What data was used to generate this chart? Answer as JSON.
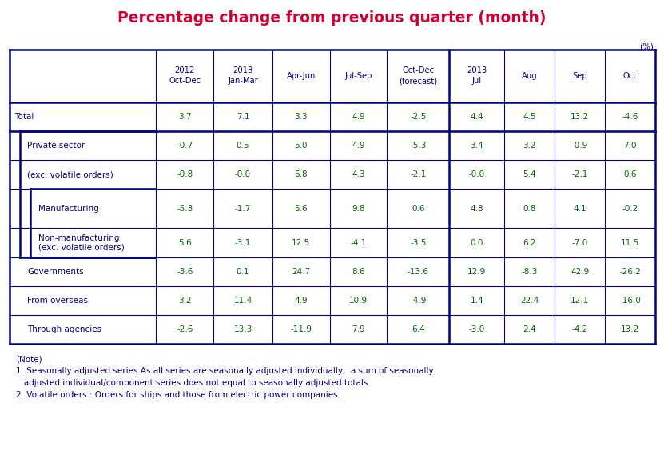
{
  "title": "Percentage change from previous quarter (month)",
  "title_color": "#cc0033",
  "unit_label": "(%)",
  "header_labels": [
    "2012\nOct-Dec",
    "2013\nJan-Mar",
    "Apr-Jun",
    "Jul-Sep",
    "Oct-Dec\n(forecast)",
    "2013\nJul",
    "Aug",
    "Sep",
    "Oct"
  ],
  "row_labels": [
    "Total",
    "Private sector",
    "(exc. volatile orders)",
    "Manufacturing",
    "Non-manufacturing\n(exc. volatile orders)",
    "Governments",
    "From overseas",
    "Through agencies"
  ],
  "indent_levels": [
    0,
    1,
    1,
    2,
    2,
    1,
    1,
    1
  ],
  "data_display": [
    [
      "3.7",
      "7.1",
      "3.3",
      "4.9",
      "-2.5",
      "4.4",
      "4.5",
      "13.2",
      "-4.6"
    ],
    [
      "-0.7",
      "0.5",
      "5.0",
      "4.9",
      "-5.3",
      "3.4",
      "3.2",
      "-0.9",
      "7.0"
    ],
    [
      "-0.8",
      "-0.0",
      "6.8",
      "4.3",
      "-2.1",
      "-0.0",
      "5.4",
      "-2.1",
      "0.6"
    ],
    [
      "-5.3",
      "-1.7",
      "5.6",
      "9.8",
      "0.6",
      "4.8",
      "0.8",
      "4.1",
      "-0.2"
    ],
    [
      "5.6",
      "-3.1",
      "12.5",
      "-4.1",
      "-3.5",
      "0.0",
      "6.2",
      "-7.0",
      "11.5"
    ],
    [
      "-3.6",
      "0.1",
      "24.7",
      "8.6",
      "-13.6",
      "12.9",
      "-8.3",
      "42.9",
      "-26.2"
    ],
    [
      "3.2",
      "11.4",
      "4.9",
      "10.9",
      "-4.9",
      "1.4",
      "22.4",
      "12.1",
      "-16.0"
    ],
    [
      "-2.6",
      "13.3",
      "-11.9",
      "7.9",
      "6.4",
      "-3.0",
      "2.4",
      "-4.2",
      "13.2"
    ]
  ],
  "header_color": "#000080",
  "data_color": "#006600",
  "border_color": "#000080",
  "bg_color": "#ffffff",
  "note_color": "#000080",
  "note_lines": [
    "(Note)",
    "1. Seasonally adjusted series.As all series are seasonally adjusted individually,  a sum of seasonally",
    "   adjusted individual/component series does not equal to seasonally adjusted totals.",
    "2. Volatile orders : Orders for ships and those from electric power companies."
  ]
}
